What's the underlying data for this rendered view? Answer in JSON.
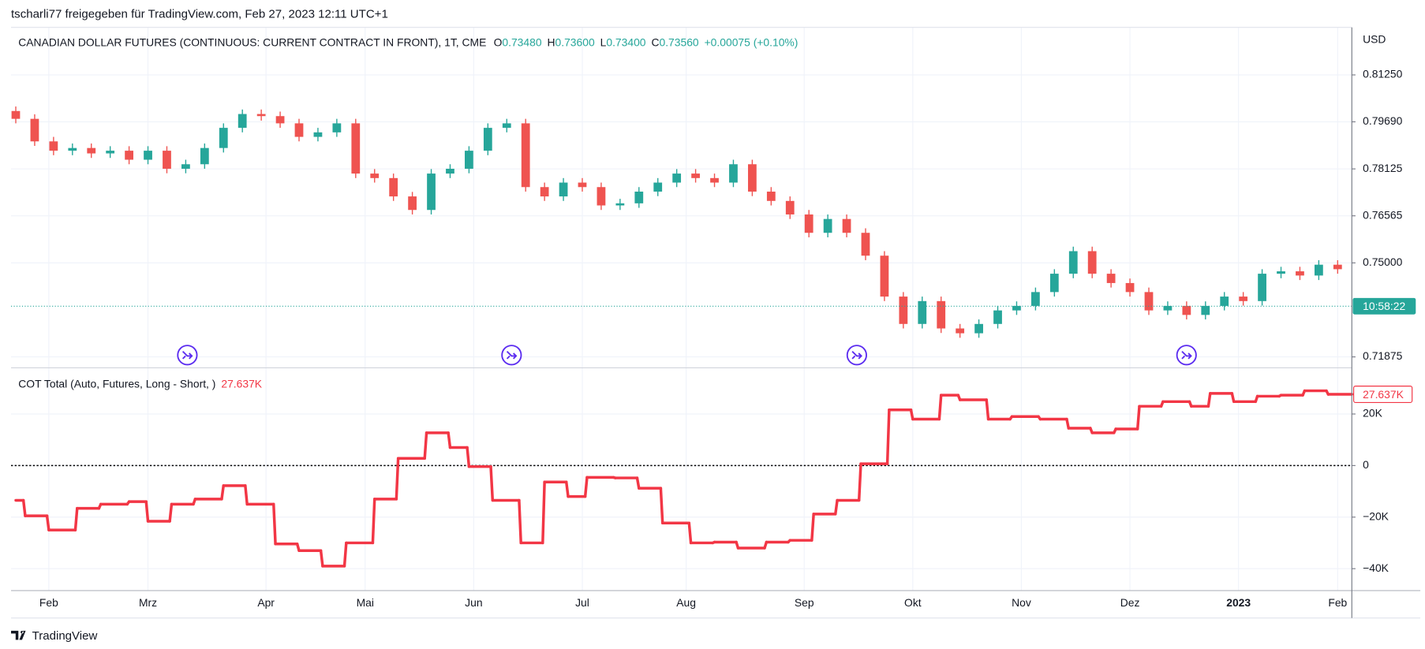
{
  "header": {
    "text": "tscharli77 freigegeben für TradingView.com, Feb 27, 2023 12:11 UTC+1"
  },
  "footer": {
    "brand": "TradingView"
  },
  "chart_data": [
    {
      "type": "candlestick",
      "title": "CANADIAN DOLLAR FUTURES (CONTINUOUS: CURRENT CONTRACT IN FRONT), 1T, CME",
      "legend": [
        {
          "key": "O",
          "value": "0.73480"
        },
        {
          "key": "H",
          "value": "0.73600"
        },
        {
          "key": "L",
          "value": "0.73400"
        },
        {
          "key": "C",
          "value": "0.73560"
        }
      ],
      "change": "+0.00075 (+0.10%)",
      "y_unit": "USD",
      "price_line": 0.7356,
      "price_line_label": "10:58:22",
      "up_color": "#26a69a",
      "down_color": "#ef5350",
      "grid": true,
      "xlim": [
        -1,
        283
      ],
      "xticks": [
        {
          "value": 7,
          "label": "Feb"
        },
        {
          "value": 28,
          "label": "Mrz"
        },
        {
          "value": 53,
          "label": "Apr"
        },
        {
          "value": 74,
          "label": "Mai"
        },
        {
          "value": 97,
          "label": "Jun"
        },
        {
          "value": 120,
          "label": "Jul"
        },
        {
          "value": 142,
          "label": "Aug"
        },
        {
          "value": 167,
          "label": "Sep"
        },
        {
          "value": 190,
          "label": "Okt"
        },
        {
          "value": 213,
          "label": "Nov"
        },
        {
          "value": 236,
          "label": "Dez"
        },
        {
          "value": 259,
          "label": "2023"
        },
        {
          "value": 280,
          "label": "Feb"
        }
      ],
      "ylim": [
        0.7151,
        0.8283
      ],
      "yticks": [
        {
          "value": 0.8125,
          "label": "0.81250"
        },
        {
          "value": 0.7969,
          "label": "0.79690"
        },
        {
          "value": 0.78125,
          "label": "0.78125"
        },
        {
          "value": 0.76565,
          "label": "0.76565"
        },
        {
          "value": 0.75,
          "label": "0.75000"
        },
        {
          "value": 0.71875,
          "label": "0.71875"
        }
      ],
      "x": [
        0,
        4,
        8,
        12,
        16,
        20,
        24,
        28,
        32,
        36,
        40,
        44,
        48,
        52,
        56,
        60,
        64,
        68,
        72,
        76,
        80,
        84,
        88,
        92,
        96,
        100,
        104,
        108,
        112,
        116,
        120,
        124,
        128,
        132,
        136,
        140,
        144,
        148,
        152,
        156,
        160,
        164,
        168,
        172,
        176,
        180,
        184,
        188,
        192,
        196,
        200,
        204,
        208,
        212,
        216,
        220,
        224,
        228,
        232,
        236,
        240,
        244,
        248,
        252,
        256,
        260,
        264,
        268,
        272,
        276,
        280
      ],
      "open": [
        0.8005,
        0.7979,
        0.7904,
        0.7873,
        0.7882,
        0.7864,
        0.7873,
        0.7843,
        0.7873,
        0.7813,
        0.7828,
        0.7882,
        0.7949,
        0.7995,
        0.7988,
        0.7964,
        0.7919,
        0.7934,
        0.7964,
        0.7797,
        0.7782,
        0.7721,
        0.7676,
        0.7797,
        0.7813,
        0.7873,
        0.7949,
        0.7964,
        0.7752,
        0.7721,
        0.7767,
        0.7752,
        0.7691,
        0.7698,
        0.7737,
        0.7767,
        0.7797,
        0.7782,
        0.7767,
        0.7828,
        0.7737,
        0.7706,
        0.7661,
        0.76,
        0.7646,
        0.76,
        0.7524,
        0.7388,
        0.7297,
        0.7373,
        0.7282,
        0.7266,
        0.7297,
        0.7342,
        0.7357,
        0.7403,
        0.7464,
        0.7539,
        0.7464,
        0.7433,
        0.7403,
        0.7342,
        0.7357,
        0.7327,
        0.7357,
        0.7388,
        0.7373,
        0.7464,
        0.7472,
        0.7458,
        0.7494
      ],
      "high": [
        0.802,
        0.7994,
        0.7919,
        0.7897,
        0.7897,
        0.7888,
        0.7888,
        0.7888,
        0.7888,
        0.7843,
        0.7897,
        0.7964,
        0.801,
        0.801,
        0.8003,
        0.7979,
        0.7949,
        0.7979,
        0.7979,
        0.7812,
        0.7797,
        0.7736,
        0.7812,
        0.7828,
        0.7888,
        0.7964,
        0.7979,
        0.7979,
        0.7767,
        0.7782,
        0.7782,
        0.7767,
        0.7713,
        0.7752,
        0.7782,
        0.7812,
        0.7812,
        0.7797,
        0.7843,
        0.7843,
        0.7752,
        0.7721,
        0.7676,
        0.7661,
        0.7661,
        0.7615,
        0.7539,
        0.7403,
        0.7388,
        0.7388,
        0.7297,
        0.7312,
        0.7357,
        0.7372,
        0.7418,
        0.7479,
        0.7554,
        0.7554,
        0.7479,
        0.7448,
        0.7418,
        0.7372,
        0.7372,
        0.7372,
        0.7403,
        0.7403,
        0.7479,
        0.7487,
        0.7487,
        0.7509,
        0.7509
      ],
      "low": [
        0.7964,
        0.7889,
        0.7858,
        0.7858,
        0.7849,
        0.7849,
        0.7828,
        0.7828,
        0.7798,
        0.7798,
        0.7813,
        0.7867,
        0.7934,
        0.7973,
        0.7949,
        0.7904,
        0.7904,
        0.7919,
        0.7782,
        0.7767,
        0.7706,
        0.7661,
        0.7661,
        0.7782,
        0.7798,
        0.7858,
        0.7934,
        0.7737,
        0.7706,
        0.7706,
        0.7737,
        0.7676,
        0.7676,
        0.7683,
        0.7722,
        0.7752,
        0.7767,
        0.7752,
        0.7752,
        0.7722,
        0.7691,
        0.7646,
        0.7585,
        0.7585,
        0.7585,
        0.7509,
        0.7373,
        0.7282,
        0.7282,
        0.7267,
        0.7251,
        0.7251,
        0.7282,
        0.7327,
        0.7342,
        0.7388,
        0.7449,
        0.7449,
        0.7418,
        0.7388,
        0.7327,
        0.7327,
        0.7312,
        0.7312,
        0.7342,
        0.7358,
        0.7358,
        0.7449,
        0.7443,
        0.7443,
        0.7464
      ],
      "close": [
        0.7979,
        0.7904,
        0.7873,
        0.7882,
        0.7864,
        0.7873,
        0.7843,
        0.7873,
        0.7813,
        0.7828,
        0.7882,
        0.7949,
        0.7995,
        0.7988,
        0.7964,
        0.7919,
        0.7934,
        0.7964,
        0.7797,
        0.7782,
        0.7721,
        0.7676,
        0.7797,
        0.7813,
        0.7873,
        0.7949,
        0.7964,
        0.7752,
        0.7721,
        0.7767,
        0.7752,
        0.7691,
        0.7698,
        0.7737,
        0.7767,
        0.7797,
        0.7782,
        0.7767,
        0.7828,
        0.7737,
        0.7706,
        0.7661,
        0.76,
        0.7646,
        0.76,
        0.7524,
        0.7388,
        0.7297,
        0.7373,
        0.7282,
        0.7266,
        0.7297,
        0.7342,
        0.7357,
        0.7403,
        0.7464,
        0.7539,
        0.7464,
        0.7433,
        0.7403,
        0.7342,
        0.7357,
        0.7327,
        0.7357,
        0.7388,
        0.7373,
        0.7464,
        0.7472,
        0.7458,
        0.7494,
        0.7479
      ]
    },
    {
      "type": "step-line",
      "title": "COT Total (Auto, Futures, Long - Short, )",
      "value_label": "27.637K",
      "color": "#f23645",
      "zero_line": true,
      "grid": true,
      "ylim": [
        -48500,
        37900
      ],
      "yticks": [
        {
          "value": 20000,
          "label": "20K"
        },
        0,
        {
          "value": -20000,
          "label": "−20K"
        },
        {
          "value": -40000,
          "label": "−40K"
        }
      ],
      "x": [
        0,
        2,
        7,
        13,
        18,
        24,
        28,
        33,
        38,
        44,
        49,
        55,
        60,
        65,
        70,
        76,
        81,
        87,
        92,
        96,
        101,
        107,
        112,
        117,
        121,
        127,
        132,
        137,
        143,
        148,
        153,
        159,
        164,
        169,
        174,
        179,
        185,
        190,
        196,
        200,
        206,
        211,
        217,
        223,
        228,
        233,
        238,
        243,
        249,
        253,
        258,
        263,
        268,
        273,
        278
      ],
      "values": [
        -13500,
        -19500,
        -25000,
        -16600,
        -15000,
        -14000,
        -21600,
        -15000,
        -13000,
        -7800,
        -15000,
        -30400,
        -33000,
        -39000,
        -30000,
        -13000,
        2800,
        12700,
        7000,
        -400,
        -13500,
        -30000,
        -6400,
        -12000,
        -4600,
        -4800,
        -8800,
        -22300,
        -30000,
        -29700,
        -32000,
        -29700,
        -29000,
        -18800,
        -13500,
        700,
        21600,
        18000,
        27300,
        25500,
        18000,
        19000,
        18000,
        14500,
        12700,
        14200,
        23000,
        24800,
        23000,
        28000,
        24800,
        26900,
        27300,
        29000,
        27637
      ]
    }
  ]
}
